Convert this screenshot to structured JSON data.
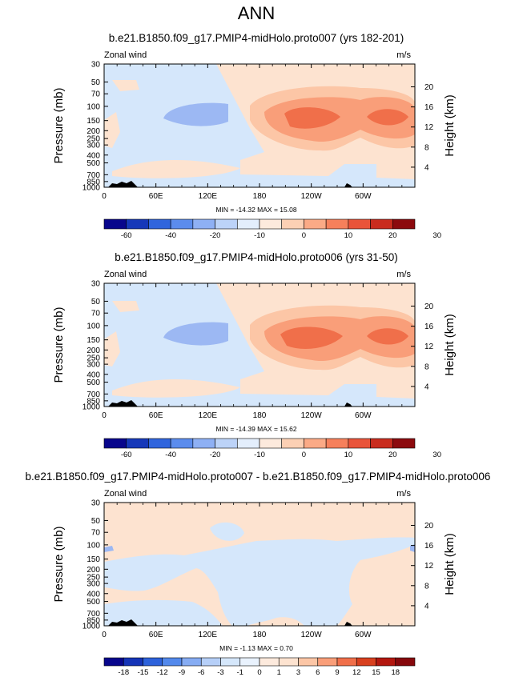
{
  "page_title": "ANN",
  "colors": {
    "neg_3": "#6d95ef",
    "neg_2": "#9cb8f3",
    "neg_1": "#d5e7fb",
    "pos_1": "#fde3d0",
    "pos_2": "#fcc6a6",
    "pos_3": "#f99e79",
    "pos_4": "#f06f4a",
    "land": "#000000"
  },
  "chart_data": [
    {
      "type": "contour",
      "id": "p1",
      "title": "b.e21.B1850.f09_g17.PMIP4-midHolo.proto007 (yrs 182-201)",
      "variable_label": "Zonal wind",
      "units_label": "m/s",
      "ylabel": "Pressure (mb)",
      "ylabel_right": "Height (km)",
      "x_ticks": [
        "0",
        "60E",
        "120E",
        "180",
        "120W",
        "60W"
      ],
      "y_ticks": [
        "30",
        "50",
        "70",
        "100",
        "150",
        "200",
        "250",
        "300",
        "400",
        "500",
        "700",
        "850",
        "1000"
      ],
      "y_ticks_right": [
        "20",
        "16",
        "12",
        "8",
        "4"
      ],
      "stats": "MIN = -14.32  MAX =  15.08",
      "min": -14.32,
      "max": 15.08,
      "colorbar_labels": [
        "-60",
        "-40",
        "-20",
        "-10",
        "0",
        "10",
        "20",
        "30"
      ]
    },
    {
      "type": "contour",
      "id": "p2",
      "title": "b.e21.B1850.f09_g17.PMIP4-midHolo.proto006 (yrs 31-50)",
      "variable_label": "Zonal wind",
      "units_label": "m/s",
      "ylabel": "Pressure (mb)",
      "ylabel_right": "Height (km)",
      "x_ticks": [
        "0",
        "60E",
        "120E",
        "180",
        "120W",
        "60W"
      ],
      "y_ticks": [
        "30",
        "50",
        "70",
        "100",
        "150",
        "200",
        "250",
        "300",
        "400",
        "500",
        "700",
        "850",
        "1000"
      ],
      "y_ticks_right": [
        "20",
        "16",
        "12",
        "8",
        "4"
      ],
      "stats": "MIN = -14.39  MAX =  15.62",
      "min": -14.39,
      "max": 15.62,
      "colorbar_labels": [
        "-60",
        "-40",
        "-20",
        "-10",
        "0",
        "10",
        "20",
        "30"
      ]
    },
    {
      "type": "contour",
      "id": "p3",
      "title": "b.e21.B1850.f09_g17.PMIP4-midHolo.proto007 - b.e21.B1850.f09_g17.PMIP4-midHolo.proto006",
      "variable_label": "Zonal wind",
      "units_label": "m/s",
      "ylabel": "Pressure (mb)",
      "ylabel_right": "Height (km)",
      "x_ticks": [
        "0",
        "60E",
        "120E",
        "180",
        "120W",
        "60W"
      ],
      "y_ticks": [
        "30",
        "50",
        "70",
        "100",
        "150",
        "200",
        "250",
        "300",
        "400",
        "500",
        "700",
        "850",
        "1000"
      ],
      "y_ticks_right": [
        "20",
        "16",
        "12",
        "8",
        "4"
      ],
      "stats": "MIN = -1.13  MAX =   0.70",
      "min": -1.13,
      "max": 0.7,
      "colorbar_labels": [
        "-18",
        "-15",
        "-12",
        "-9",
        "-6",
        "-3",
        "-1",
        "0",
        "1",
        "3",
        "6",
        "9",
        "12",
        "15",
        "18"
      ]
    }
  ]
}
